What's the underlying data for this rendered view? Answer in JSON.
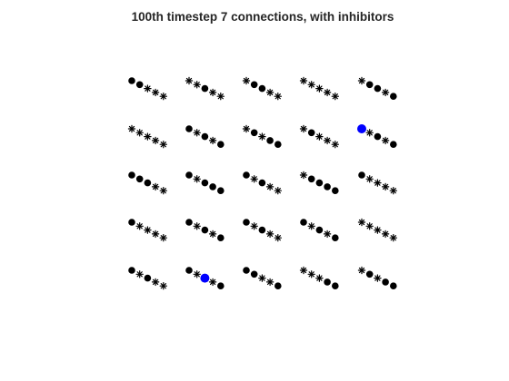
{
  "chart_data": {
    "type": "scatter",
    "title": "100th timestep 7 connections, with inhibitors",
    "xlabel": "",
    "ylabel": "",
    "axes_visible": false,
    "grid": false,
    "layout": {
      "rows": 5,
      "cols": 5,
      "units_per_diagonal": 5
    },
    "marker_legend": {
      "dot": "filled circle",
      "star": "asterisk"
    },
    "colors": {
      "default": "#000000",
      "highlight": "#0000ff"
    },
    "diagonals": [
      [
        [
          "dot",
          "dot",
          "star",
          "star",
          "star"
        ],
        [
          "star",
          "star",
          "dot",
          "star",
          "star"
        ],
        [
          "star",
          "dot",
          "dot",
          "star",
          "star"
        ],
        [
          "star",
          "star",
          "star",
          "star",
          "star"
        ],
        [
          "star",
          "dot",
          "dot",
          "star",
          "dot"
        ]
      ],
      [
        [
          "star",
          "star",
          "star",
          "star",
          "star"
        ],
        [
          "dot",
          "star",
          "dot",
          "star",
          "dot"
        ],
        [
          "star",
          "dot",
          "star",
          "dot",
          "dot"
        ],
        [
          "star",
          "dot",
          "star",
          "star",
          "star"
        ],
        [
          "dot",
          "star",
          "dot",
          "star",
          "dot"
        ]
      ],
      [
        [
          "dot",
          "dot",
          "dot",
          "star",
          "star"
        ],
        [
          "dot",
          "star",
          "dot",
          "dot",
          "dot"
        ],
        [
          "dot",
          "star",
          "dot",
          "star",
          "star"
        ],
        [
          "star",
          "dot",
          "dot",
          "dot",
          "dot"
        ],
        [
          "dot",
          "star",
          "star",
          "star",
          "star"
        ]
      ],
      [
        [
          "dot",
          "star",
          "star",
          "star",
          "star"
        ],
        [
          "dot",
          "star",
          "dot",
          "star",
          "dot"
        ],
        [
          "dot",
          "star",
          "dot",
          "star",
          "star"
        ],
        [
          "dot",
          "star",
          "dot",
          "star",
          "dot"
        ],
        [
          "star",
          "star",
          "star",
          "star",
          "star"
        ]
      ],
      [
        [
          "dot",
          "star",
          "dot",
          "star",
          "star"
        ],
        [
          "dot",
          "star",
          "dot",
          "star",
          "dot"
        ],
        [
          "dot",
          "dot",
          "star",
          "star",
          "dot"
        ],
        [
          "star",
          "star",
          "star",
          "dot",
          "dot"
        ],
        [
          "star",
          "dot",
          "star",
          "dot",
          "dot"
        ]
      ]
    ],
    "highlights": [
      {
        "row": 1,
        "col": 4,
        "unit": 0,
        "color": "#0000ff"
      },
      {
        "row": 4,
        "col": 1,
        "unit": 2,
        "color": "#0000ff"
      }
    ]
  }
}
